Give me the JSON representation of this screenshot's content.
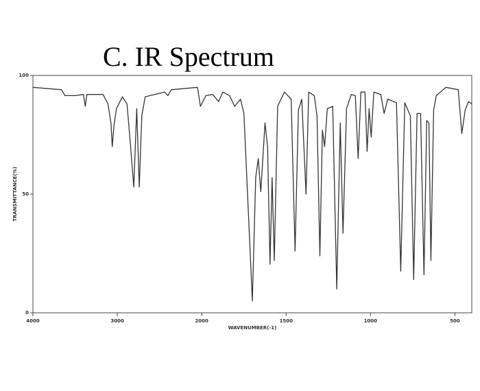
{
  "chart_data": {
    "type": "line",
    "title": "C.  IR Spectrum",
    "x_label": "WAVENUMBER(-1)",
    "y_label": "TRANSMITTANCE(%)",
    "xlim": [
      4000,
      400
    ],
    "x_break": 2000,
    "x_break_stretch": 2,
    "xticks": [
      4000,
      3000,
      2000,
      1500,
      1000,
      500
    ],
    "ylim": [
      0,
      100
    ],
    "yticks": [
      0,
      50,
      100
    ],
    "color": "#333333",
    "x": [
      4000,
      3660,
      3620,
      3500,
      3400,
      3380,
      3360,
      3170,
      3110,
      3075,
      3060,
      3040,
      3010,
      2940,
      2885,
      2845,
      2805,
      2770,
      2740,
      2710,
      2670,
      2440,
      2400,
      2360,
      2050,
      2015,
      1975,
      1935,
      1900,
      1875,
      1835,
      1805,
      1770,
      1750,
      1725,
      1700,
      1680,
      1665,
      1650,
      1625,
      1610,
      1595,
      1583,
      1570,
      1550,
      1510,
      1470,
      1447,
      1427,
      1407,
      1382,
      1366,
      1333,
      1317,
      1300,
      1285,
      1272,
      1256,
      1224,
      1200,
      1179,
      1163,
      1142,
      1114,
      1090,
      1073,
      1057,
      1033,
      1020,
      1008,
      996,
      980,
      939,
      919,
      898,
      846,
      821,
      797,
      764,
      744,
      724,
      703,
      683,
      667,
      654,
      642,
      626,
      610,
      553,
      480,
      459,
      439,
      419,
      400
    ],
    "values": [
      95,
      94,
      91.5,
      91.5,
      92,
      87,
      92,
      92,
      88,
      80,
      70,
      79,
      86,
      91,
      88,
      71,
      53,
      86,
      53,
      83,
      91,
      93,
      91.5,
      94,
      95,
      87,
      91.5,
      92,
      89,
      93,
      91.5,
      87,
      90,
      84,
      45,
      5,
      57,
      65,
      51,
      80,
      70,
      20.5,
      57,
      22,
      87,
      93,
      90,
      26,
      85.5,
      90,
      50,
      93,
      91.5,
      83,
      24,
      77,
      70,
      86,
      87,
      10,
      80,
      33.5,
      86,
      92,
      91.5,
      65,
      93,
      93,
      68,
      86,
      74,
      93,
      92,
      84,
      90,
      88.5,
      17.5,
      88.5,
      83,
      14,
      84,
      84,
      16,
      81,
      80,
      22,
      85.5,
      91.5,
      95,
      94,
      75.5,
      85.5,
      89,
      88
    ]
  }
}
